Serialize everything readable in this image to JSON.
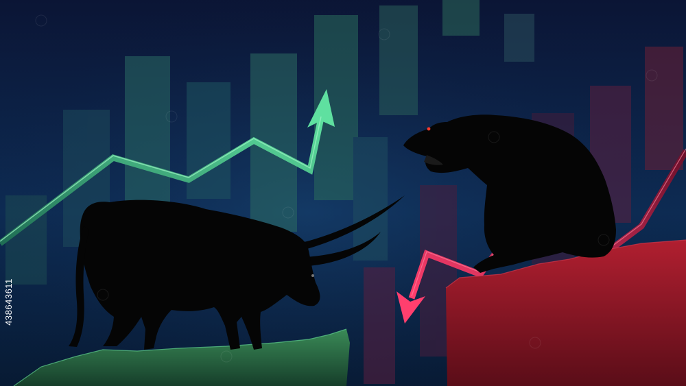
{
  "image": {
    "subject": "bull-vs-bear-market",
    "side_id": "438643611",
    "colors": {
      "bg_top": "#0b1535",
      "bg_mid": "#0d2d55",
      "bull_green": "#3ec484",
      "bear_red": "#e0245a",
      "cliff_green": "#2f6e45",
      "cliff_red": "#9a1b28",
      "silhouette": "#050505",
      "eye": "#ff3a2a"
    }
  }
}
